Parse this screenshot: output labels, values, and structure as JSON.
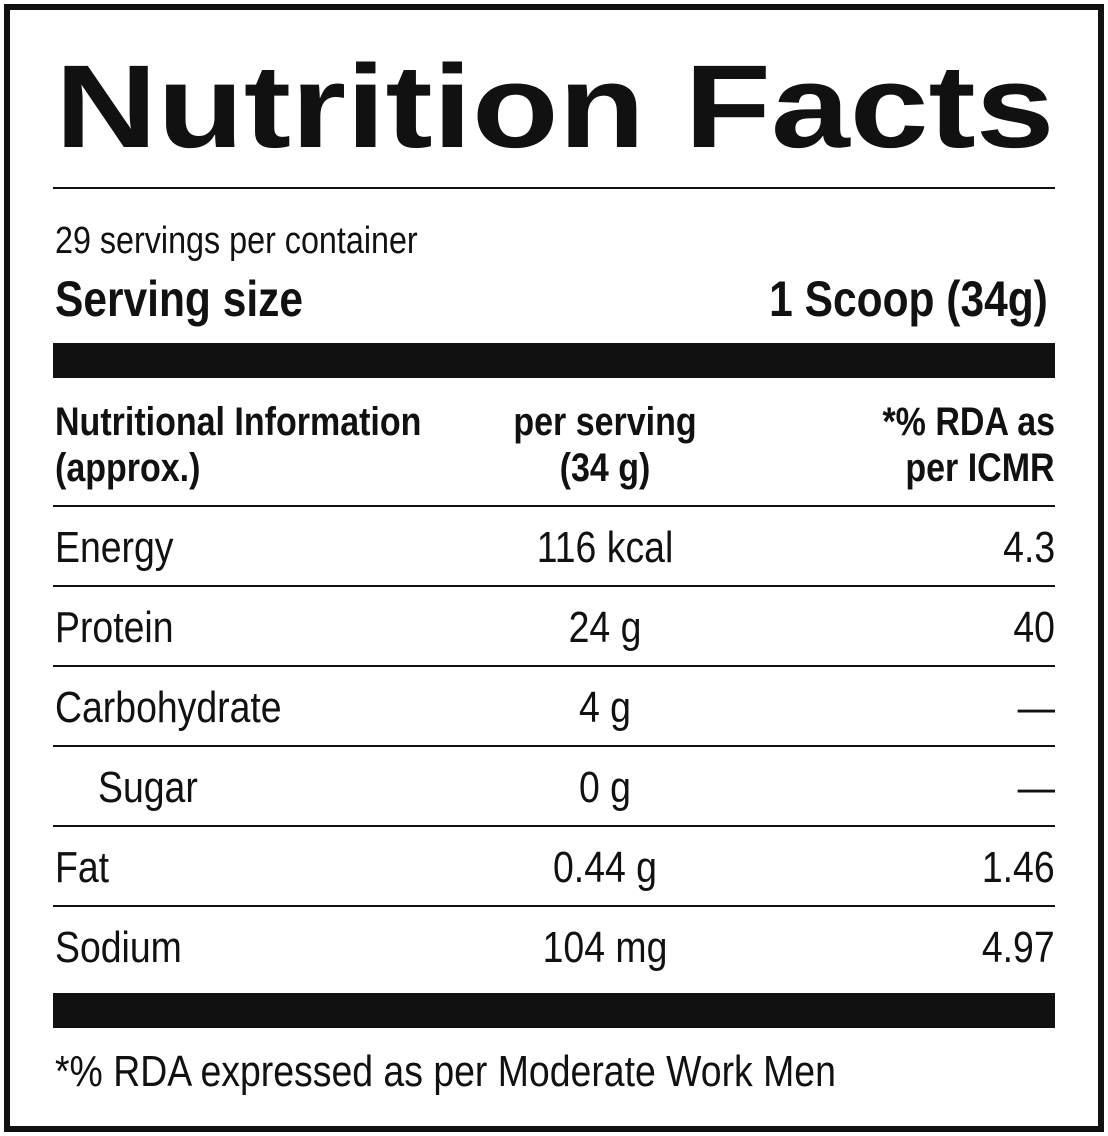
{
  "title": "Nutrition Facts",
  "servings": "29 servings per container",
  "serving_size": {
    "label": "Serving size",
    "value": "1 Scoop (34g)"
  },
  "table": {
    "header": [
      [
        "Nutritional Information",
        "(approx.)"
      ],
      [
        "per serving",
        "(34 g)"
      ],
      [
        "*% RDA as",
        "per ICMR"
      ]
    ],
    "rows": [
      [
        "Energy",
        "116 kcal",
        "4.3"
      ],
      [
        "Protein",
        "24 g",
        "40"
      ],
      [
        "Carbohydrate",
        "4 g",
        "—"
      ],
      [
        "Sugar",
        "0 g",
        "—"
      ],
      [
        "Fat",
        "0.44 g",
        "1.46"
      ],
      [
        "Sodium",
        "104 mg",
        "4.97"
      ]
    ]
  },
  "footnote": "*% RDA expressed as per Moderate Work Men"
}
